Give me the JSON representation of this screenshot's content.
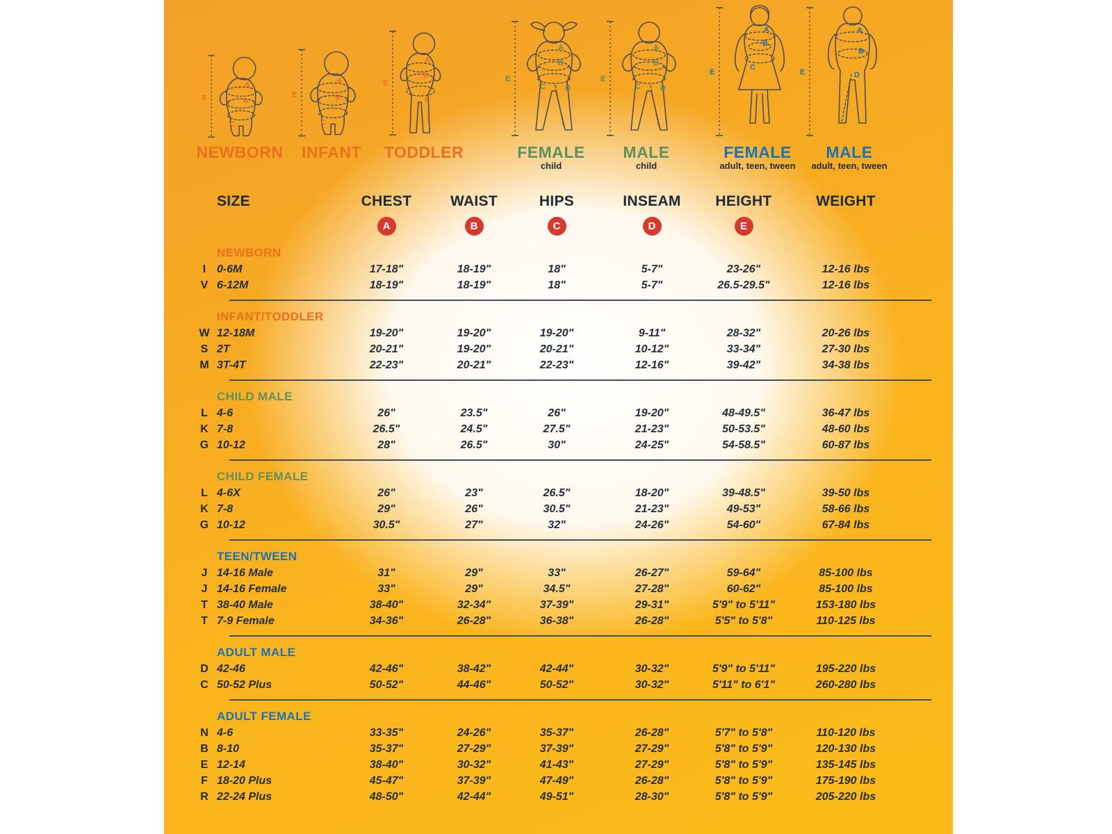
{
  "colors": {
    "orange_heading": "#e8701f",
    "green_heading": "#649159",
    "blue_heading": "#1e71b4",
    "badge_red": "#d6392e",
    "text_dark": "#1d2a36",
    "panel_orange_top": "#f3a028",
    "panel_orange_bottom": "#fcbb18"
  },
  "figures": [
    {
      "label": "NEWBORN",
      "sublabel": "",
      "color": "#e8701f",
      "letters": [
        "A",
        "B",
        "C",
        "E"
      ]
    },
    {
      "label": "INFANT",
      "sublabel": "",
      "color": "#e8701f",
      "letters": [
        "A",
        "B",
        "C",
        "E"
      ]
    },
    {
      "label": "TODDLER",
      "sublabel": "",
      "color": "#e8701f",
      "letters": [
        "A",
        "B",
        "C",
        "E"
      ]
    },
    {
      "label": "FEMALE",
      "sublabel": "child",
      "color": "#5e9060",
      "letters": [
        "A",
        "B",
        "C",
        "D",
        "E"
      ]
    },
    {
      "label": "MALE",
      "sublabel": "child",
      "color": "#5e9060",
      "letters": [
        "A",
        "B",
        "C",
        "D",
        "E"
      ]
    },
    {
      "label": "FEMALE",
      "sublabel": "adult, teen, tween",
      "color": "#1e71b4",
      "letters": [
        "A",
        "B",
        "C",
        "E"
      ]
    },
    {
      "label": "MALE",
      "sublabel": "adult, teen, tween",
      "color": "#1e71b4",
      "letters": [
        "A",
        "B",
        "D",
        "E"
      ]
    }
  ],
  "chart_data": {
    "type": "table",
    "columns": [
      "SIZE",
      "CHEST",
      "WAIST",
      "HIPS",
      "INSEAM",
      "HEIGHT",
      "WEIGHT"
    ],
    "measurement_badges": [
      "A",
      "B",
      "C",
      "D",
      "E"
    ],
    "badge_to_column": {
      "A": "CHEST",
      "B": "WAIST",
      "C": "HIPS",
      "D": "INSEAM",
      "E": "HEIGHT"
    },
    "sections": [
      {
        "title": "NEWBORN",
        "color": "#e8701f",
        "rows": [
          [
            "I",
            "0-6M",
            "17-18\"",
            "18-19\"",
            "18\"",
            "5-7\"",
            "23-26\"",
            "12-16 lbs"
          ],
          [
            "V",
            "6-12M",
            "18-19\"",
            "18-19\"",
            "18\"",
            "5-7\"",
            "26.5-29.5\"",
            "12-16 lbs"
          ]
        ]
      },
      {
        "title": "INFANT/TODDLER",
        "color": "#e8701f",
        "rows": [
          [
            "W",
            "12-18M",
            "19-20\"",
            "19-20\"",
            "19-20\"",
            "9-11\"",
            "28-32\"",
            "20-26 lbs"
          ],
          [
            "S",
            "2T",
            "20-21\"",
            "19-20\"",
            "20-21\"",
            "10-12\"",
            "33-34\"",
            "27-30 lbs"
          ],
          [
            "M",
            "3T-4T",
            "22-23\"",
            "20-21\"",
            "22-23\"",
            "12-16\"",
            "39-42\"",
            "34-38 lbs"
          ]
        ]
      },
      {
        "title": "CHILD MALE",
        "color": "#649159",
        "rows": [
          [
            "L",
            "4-6",
            "26\"",
            "23.5\"",
            "26\"",
            "19-20\"",
            "48-49.5\"",
            "36-47 lbs"
          ],
          [
            "K",
            "7-8",
            "26.5\"",
            "24.5\"",
            "27.5\"",
            "21-23\"",
            "50-53.5\"",
            "48-60 lbs"
          ],
          [
            "G",
            "10-12",
            "28\"",
            "26.5\"",
            "30\"",
            "24-25\"",
            "54-58.5\"",
            "60-87 lbs"
          ]
        ]
      },
      {
        "title": "CHILD FEMALE",
        "color": "#649159",
        "rows": [
          [
            "L",
            "4-6X",
            "26\"",
            "23\"",
            "26.5\"",
            "18-20\"",
            "39-48.5\"",
            "39-50 lbs"
          ],
          [
            "K",
            "7-8",
            "29\"",
            "26\"",
            "30.5\"",
            "21-23\"",
            "49-53\"",
            "58-66 lbs"
          ],
          [
            "G",
            "10-12",
            "30.5\"",
            "27\"",
            "32\"",
            "24-26\"",
            "54-60\"",
            "67-84 lbs"
          ]
        ]
      },
      {
        "title": "TEEN/TWEEN",
        "color": "#1e71b4",
        "rows": [
          [
            "J",
            "14-16 Male",
            "31\"",
            "29\"",
            "33\"",
            "26-27\"",
            "59-64\"",
            "85-100 lbs"
          ],
          [
            "J",
            "14-16 Female",
            "33\"",
            "29\"",
            "34.5\"",
            "27-28\"",
            "60-62\"",
            "85-100 lbs"
          ],
          [
            "T",
            "38-40 Male",
            "38-40\"",
            "32-34\"",
            "37-39\"",
            "29-31\"",
            "5'9\" to 5'11\"",
            "153-180 lbs"
          ],
          [
            "T",
            "7-9 Female",
            "34-36\"",
            "26-28\"",
            "36-38\"",
            "26-28\"",
            "5'5\" to 5'8\"",
            "110-125 lbs"
          ]
        ]
      },
      {
        "title": "ADULT MALE",
        "color": "#1e71b4",
        "rows": [
          [
            "D",
            "42-46",
            "42-46\"",
            "38-42\"",
            "42-44\"",
            "30-32\"",
            "5'9\" to 5'11\"",
            "195-220 lbs"
          ],
          [
            "C",
            "50-52 Plus",
            "50-52\"",
            "44-46\"",
            "50-52\"",
            "30-32\"",
            "5'11\" to 6'1\"",
            "260-280 lbs"
          ]
        ]
      },
      {
        "title": "ADULT FEMALE",
        "color": "#1e71b4",
        "rows": [
          [
            "N",
            "4-6",
            "33-35\"",
            "24-26\"",
            "35-37\"",
            "26-28\"",
            "5'7\" to 5'8\"",
            "110-120 lbs"
          ],
          [
            "B",
            "8-10",
            "35-37\"",
            "27-29\"",
            "37-39\"",
            "27-29\"",
            "5'8\" to 5'9\"",
            "120-130 lbs"
          ],
          [
            "E",
            "12-14",
            "38-40\"",
            "30-32\"",
            "41-43\"",
            "27-29\"",
            "5'8\" to 5'9\"",
            "135-145 lbs"
          ],
          [
            "F",
            "18-20 Plus",
            "45-47\"",
            "37-39\"",
            "47-49\"",
            "26-28\"",
            "5'8\" to 5'9\"",
            "175-190 lbs"
          ],
          [
            "R",
            "22-24 Plus",
            "48-50\"",
            "42-44\"",
            "49-51\"",
            "28-30\"",
            "5'8\" to 5'9\"",
            "205-220 lbs"
          ]
        ]
      }
    ]
  }
}
